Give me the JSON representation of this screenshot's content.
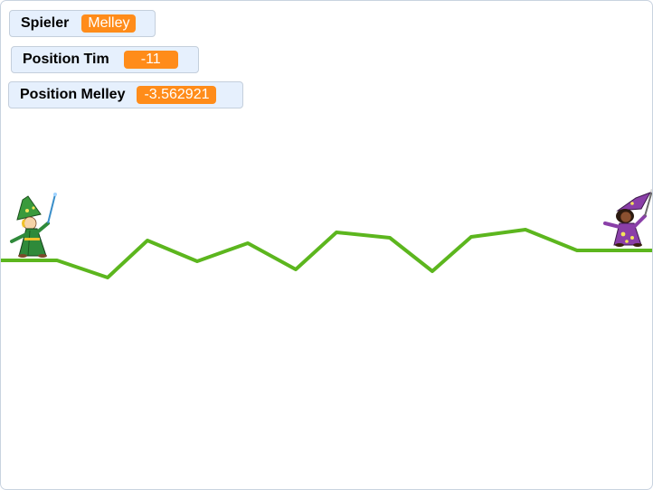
{
  "monitors": {
    "player": {
      "label": "Spieler",
      "value": "Melley"
    },
    "position_tim": {
      "label": "Position Tim",
      "value": "-11"
    },
    "position_melley": {
      "label": "Position Melley",
      "value": "-3.562921"
    }
  },
  "colors": {
    "monitor_value": "#ff8c1a",
    "monitor_bg": "#e6f0fd",
    "terrain_line": "#5cb61e",
    "tim_robe": "#2f8a3a",
    "melley_robe": "#8a3fa8"
  },
  "sprites": {
    "left": {
      "name": "Tim",
      "icon": "wizard-green-icon"
    },
    "right": {
      "name": "Melley",
      "icon": "wizard-purple-icon"
    }
  }
}
